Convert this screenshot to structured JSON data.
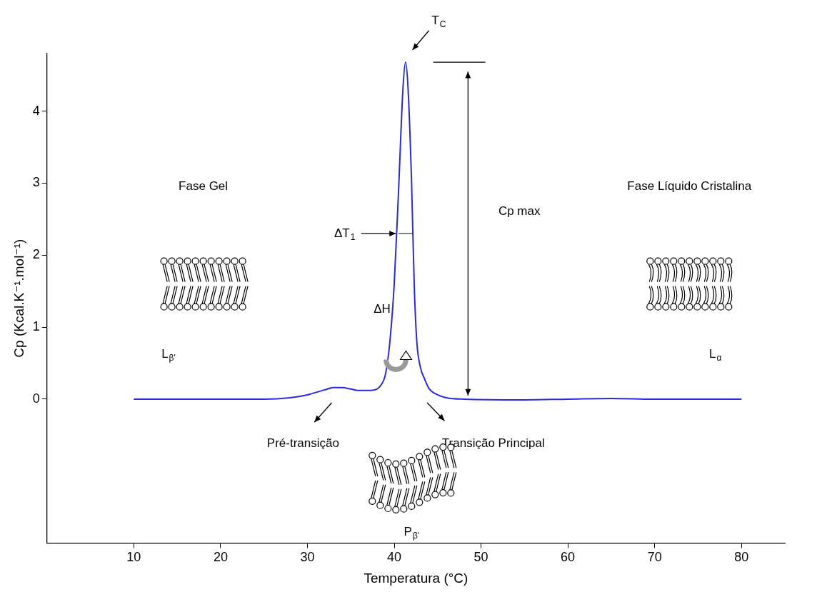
{
  "chart_data": {
    "type": "line",
    "x_label": "Temperatura (°C)",
    "y_label": "Cp (Kcal.K⁻¹.mol⁻¹)",
    "x": [
      10,
      15,
      20,
      25,
      28,
      30,
      32,
      33,
      34,
      35,
      36,
      37,
      38,
      38.5,
      39,
      39.5,
      40,
      40.5,
      41,
      41.3,
      41.6,
      42,
      42.3,
      42.6,
      43,
      43.5,
      44,
      45,
      46,
      48,
      55,
      60,
      65,
      70,
      80
    ],
    "values": [
      0,
      0,
      0,
      0,
      0.02,
      0.06,
      0.13,
      0.16,
      0.16,
      0.14,
      0.12,
      0.12,
      0.14,
      0.2,
      0.35,
      0.8,
      1.6,
      2.9,
      4.3,
      4.68,
      4.3,
      3.0,
      1.6,
      0.8,
      0.45,
      0.28,
      0.15,
      0.06,
      0.02,
      0,
      -0.01,
      0,
      0.01,
      0,
      0
    ],
    "color": "#2a2ad8",
    "xlim": [
      0,
      85
    ],
    "ylim": [
      -2,
      4.8
    ],
    "xticks": [
      10,
      20,
      30,
      40,
      50,
      60,
      70,
      80
    ],
    "yticks": [
      0,
      1,
      2,
      3,
      4
    ],
    "grid": false,
    "annotations": {
      "tc": {
        "text": "T",
        "sub": "C"
      },
      "cp_max": {
        "text": "Cp max"
      },
      "delta_t": {
        "text": "ΔT",
        "sub": "1"
      },
      "delta_h": {
        "text": "ΔH"
      },
      "gel": {
        "text": "Fase Gel"
      },
      "liquid": {
        "text": "Fase Líquido Cristalina"
      },
      "pre": {
        "text": "Pré-transição"
      },
      "main": {
        "text": "Transição Principal"
      },
      "l_beta": {
        "text": "L",
        "sub": "β'"
      },
      "l_alpha": {
        "text": "L",
        "sub": "α"
      },
      "p_beta": {
        "text": "P",
        "sub": "β'"
      }
    }
  }
}
